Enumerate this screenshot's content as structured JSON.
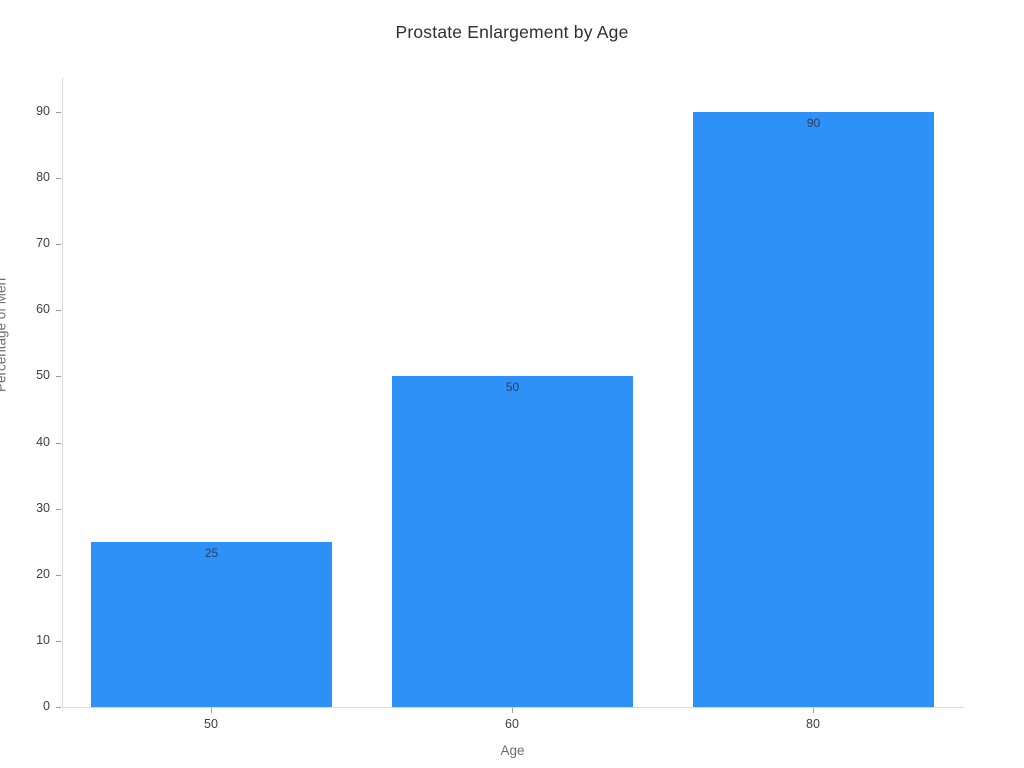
{
  "chart_data": {
    "type": "bar",
    "title": "Prostate Enlargement by Age",
    "xlabel": "Age",
    "ylabel": "Percentage of Men",
    "categories": [
      "50",
      "60",
      "80"
    ],
    "values": [
      25,
      50,
      90
    ],
    "bar_value_labels": [
      "25",
      "50",
      "90"
    ],
    "y_ticks": [
      0,
      10,
      20,
      30,
      40,
      50,
      60,
      70,
      80,
      90
    ],
    "ylim": [
      0,
      95.16
    ],
    "grid": false,
    "legend": "none",
    "bar_color": "#2e91f7",
    "inside_label_color": "#2a3f5f",
    "axis_line_color": "#d9d9d9",
    "tick_label_color": "#3f3f3f",
    "axis_title_color": "#6e6e6e",
    "title_color": "#2f2f2f",
    "background_color": "#ffffff"
  }
}
